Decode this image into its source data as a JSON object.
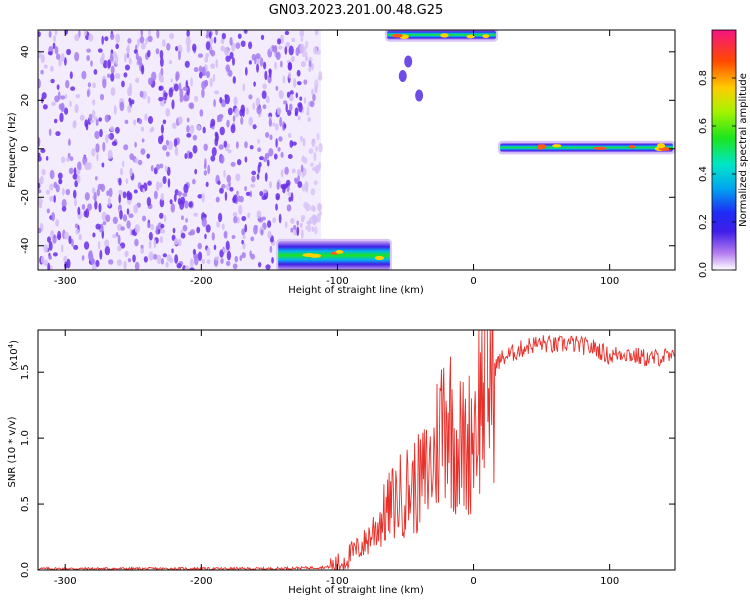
{
  "title": "GN03.2023.201.00.48.G25",
  "chart_data": [
    {
      "type": "heatmap",
      "xlabel": "Height of straight line (km)",
      "ylabel": "Frequency (Hz)",
      "xlim": [
        -320,
        148
      ],
      "ylim": [
        -50,
        49
      ],
      "xticks": [
        -300,
        -200,
        -100,
        0,
        100
      ],
      "yticks": [
        -40,
        -20,
        0,
        20,
        40
      ],
      "colorbar": {
        "label": "Normalized spectral amplitude",
        "range": [
          0,
          1
        ],
        "ticks": [
          0.0,
          0.2,
          0.4,
          0.6,
          0.8
        ]
      },
      "features": [
        {
          "kind": "noise",
          "x": [
            -320,
            -112
          ],
          "y": [
            -50,
            49
          ],
          "amplitude": 0.25
        },
        {
          "kind": "band",
          "x": [
            18,
            148
          ],
          "y": [
            -1.5,
            2.5
          ],
          "amplitude": 0.55
        },
        {
          "kind": "band",
          "x": [
            -145,
            -60
          ],
          "y": [
            -50,
            -38
          ],
          "amplitude": 0.5
        },
        {
          "kind": "band",
          "x": [
            -65,
            18
          ],
          "y": [
            45,
            49
          ],
          "amplitude": 0.55
        }
      ]
    },
    {
      "type": "line",
      "xlabel": "Height of straight line (km)",
      "ylabel": "SNR (10 * v/v)",
      "scale_label": "(x10",
      "scale_exp": "4",
      "xlim": [
        -320,
        148
      ],
      "ylim": [
        0,
        1.82
      ],
      "xticks": [
        -300,
        -200,
        -100,
        0,
        100
      ],
      "yticks": [
        0.0,
        0.5,
        1.0,
        1.5
      ],
      "color": "#e8302a",
      "series": [
        {
          "x": [
            -320,
            -250,
            -200,
            -150,
            -110,
            -100,
            -90,
            -80,
            -70,
            -60,
            -50,
            -40,
            -30,
            -20,
            -15,
            -5,
            0,
            5,
            10,
            20,
            30,
            40,
            50,
            60,
            70,
            80,
            90,
            100,
            110,
            120,
            130,
            140,
            148
          ],
          "y": [
            0.01,
            0.01,
            0.01,
            0.01,
            0.02,
            0.03,
            0.12,
            0.2,
            0.35,
            0.5,
            0.6,
            0.65,
            0.8,
            1.3,
            1.0,
            0.9,
            1.1,
            1.3,
            1.45,
            1.6,
            1.65,
            1.7,
            1.72,
            1.7,
            1.72,
            1.7,
            1.68,
            1.62,
            1.65,
            1.62,
            1.6,
            1.62,
            1.6
          ]
        }
      ]
    }
  ]
}
